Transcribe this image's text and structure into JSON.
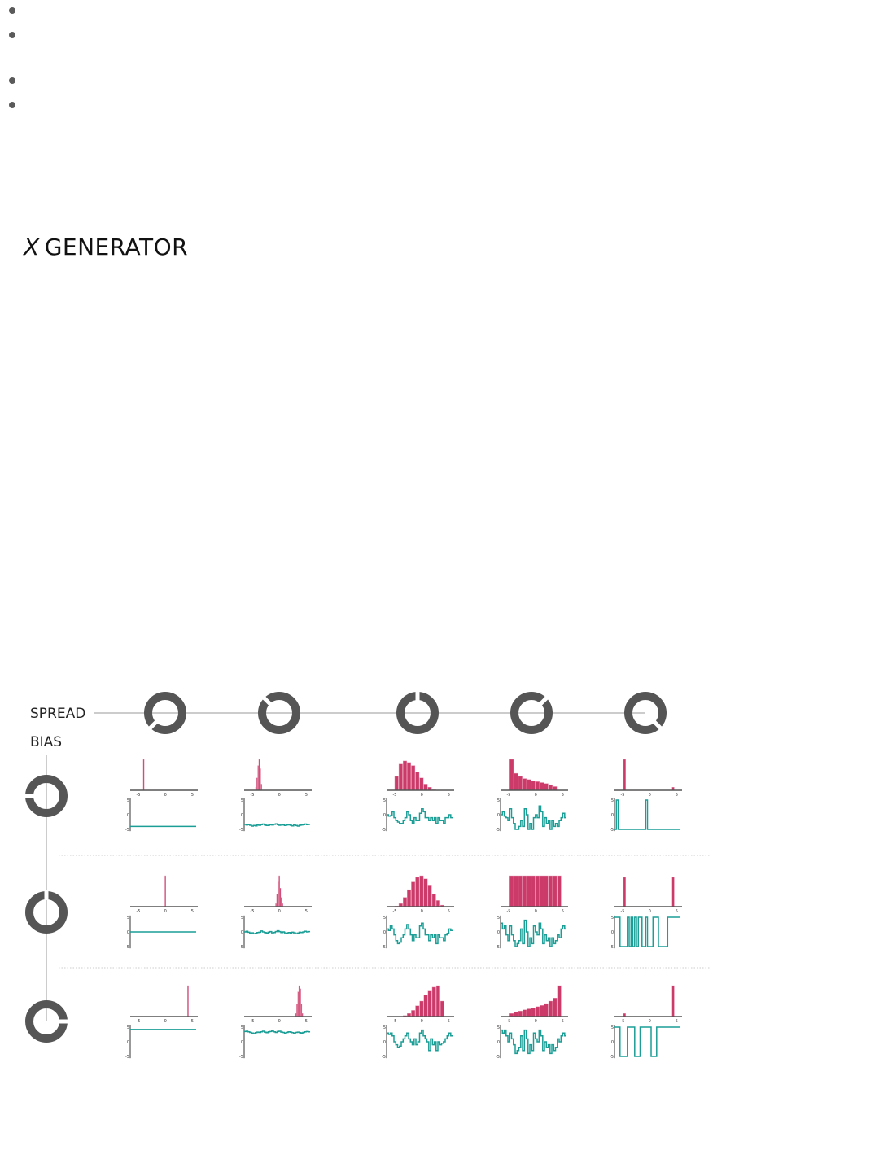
{
  "title": {
    "var": "X",
    "rest": "GENERATOR"
  },
  "bullets": 4,
  "labels": {
    "spread": "SPREAD",
    "bias": "BIAS"
  },
  "colors": {
    "knob": "#555555",
    "hist": "#cc3a6a",
    "trace": "#1a9e96",
    "line": "#bbbbbb"
  },
  "knobs": {
    "spread": [
      0,
      0.333,
      0.5,
      0.667,
      1
    ],
    "bias": [
      0.167,
      0.5,
      0.833
    ]
  },
  "axes": {
    "hist_ticks": [
      "-5",
      "0",
      "5"
    ],
    "trace_ticks": [
      "5",
      "0",
      "-5"
    ],
    "x_range": [
      -6.5,
      6
    ],
    "y_range": [
      -5,
      5
    ]
  },
  "grid": [
    [
      {
        "hist": {
          "start": -4.1,
          "width": 0.2,
          "counts": [
            1
          ]
        },
        "trace": [
          -4,
          -4,
          -4,
          -4,
          -4,
          -4,
          -4,
          -4,
          -4,
          -4,
          -4,
          -4,
          -4,
          -4,
          -4,
          -4,
          -4,
          -4,
          -4,
          -4,
          -4,
          -4,
          -4,
          -4,
          -4,
          -4,
          -4,
          -4,
          -4,
          -4,
          -4,
          -4,
          -4,
          -4,
          -4,
          -4
        ]
      },
      {
        "hist": {
          "start": -4.4,
          "width": 0.2,
          "counts": [
            0.1,
            0.4,
            0.8,
            1,
            0.7,
            0.2
          ]
        },
        "trace": [
          -3.3,
          -3.5,
          -3.4,
          -3.6,
          -3.9,
          -3.7,
          -3.8,
          -3.5,
          -3.6,
          -3.4,
          -3.2,
          -3.5,
          -3.7,
          -3.6,
          -3.4,
          -3.5,
          -3.3,
          -3.1,
          -3.4,
          -3.6,
          -3.3,
          -3.5,
          -3.7,
          -3.5,
          -3.4,
          -3.6,
          -3.8,
          -3.5,
          -3.7,
          -3.9,
          -3.6,
          -3.5,
          -3.4,
          -3.2,
          -3.4,
          -3.3
        ]
      },
      {
        "hist": {
          "start": -5,
          "width": 0.77,
          "counts": [
            0.45,
            0.85,
            0.95,
            0.9,
            0.8,
            0.6,
            0.4,
            0.2,
            0.1,
            0.02,
            0,
            0,
            0
          ]
        },
        "trace": [
          0,
          -0.5,
          -0.3,
          1,
          -1,
          -2,
          -2.5,
          -3,
          -3,
          -2,
          -1,
          1,
          0,
          -2,
          -3,
          -1,
          -2,
          -2,
          0.5,
          2,
          1,
          -1,
          -1,
          -2,
          -1,
          -2,
          -1,
          -3,
          -1,
          -2,
          -2,
          -3,
          -1,
          -1,
          0,
          -1
        ]
      },
      {
        "hist": {
          "start": -4.8,
          "width": 0.8,
          "counts": [
            1,
            0.55,
            0.45,
            0.38,
            0.35,
            0.3,
            0.28,
            0.25,
            0.22,
            0.18,
            0.12,
            0
          ]
        },
        "trace": [
          0,
          1,
          -0.5,
          -1,
          -2,
          2,
          -1,
          -3,
          -5,
          -5,
          -4,
          -2,
          -4,
          2,
          0,
          -5,
          -3,
          -5,
          -1,
          0,
          -1,
          3,
          1,
          -4,
          -1,
          -3,
          -2,
          -5,
          -2,
          -4,
          -3,
          -4,
          -2,
          -1,
          0.5,
          -1
        ]
      },
      {
        "hist": {
          "start": -4.85,
          "width": 0.5,
          "counts": [
            1,
            0,
            0,
            0,
            0,
            0,
            0,
            0,
            0,
            0,
            0,
            0,
            0,
            0,
            0,
            0,
            0,
            0,
            0.1
          ]
        },
        "trace": [
          -5,
          5,
          -5,
          -5,
          -5,
          -5,
          -5,
          -5,
          -5,
          -5,
          -5,
          -5,
          -5,
          -5,
          -5,
          -5,
          -5,
          5,
          -5,
          -5,
          -5,
          -5,
          -5,
          -5,
          -5,
          -5,
          -5,
          -5,
          -5,
          -5,
          -5,
          -5,
          -5,
          -5,
          -5,
          -5
        ]
      }
    ],
    [
      {
        "hist": {
          "start": -0.1,
          "width": 0.2,
          "counts": [
            1
          ]
        },
        "trace": [
          0,
          0,
          0,
          0,
          0,
          0,
          0,
          0,
          0,
          0,
          0,
          0,
          0,
          0,
          0,
          0,
          0,
          0,
          0,
          0,
          0,
          0,
          0,
          0,
          0,
          0,
          0,
          0,
          0,
          0,
          0,
          0,
          0,
          0,
          0,
          0
        ]
      },
      {
        "hist": {
          "start": -0.7,
          "width": 0.2,
          "counts": [
            0.1,
            0.4,
            0.8,
            1,
            0.6,
            0.3,
            0.1
          ]
        },
        "trace": [
          0,
          0.2,
          -0.1,
          -0.4,
          -0.3,
          -0.6,
          -0.5,
          -0.2,
          -0.1,
          0.3,
          0,
          -0.2,
          -0.4,
          -0.1,
          0.1,
          -0.3,
          -0.2,
          0.1,
          0.4,
          0.1,
          -0.2,
          0,
          -0.3,
          -0.5,
          -0.2,
          -0.4,
          -0.1,
          -0.3,
          -0.6,
          -0.4,
          -0.1,
          -0.2,
          0,
          0.2,
          0,
          0.1
        ]
      },
      {
        "hist": {
          "start": -5,
          "width": 0.77,
          "counts": [
            0.02,
            0.1,
            0.3,
            0.55,
            0.8,
            0.95,
            1,
            0.9,
            0.7,
            0.4,
            0.2,
            0.05,
            0
          ]
        },
        "trace": [
          1,
          0.5,
          2,
          1,
          -1,
          -3,
          -4,
          -3.5,
          -2,
          -1,
          1,
          2.5,
          1,
          -1,
          -3,
          -1,
          -2,
          -2,
          2,
          3,
          1,
          -1,
          -1,
          -3,
          -1,
          -2,
          -1,
          -4,
          -1,
          -2,
          -2,
          -3,
          -1,
          -0.5,
          1,
          0.5
        ]
      },
      {
        "hist": {
          "start": -4.8,
          "width": 0.8,
          "counts": [
            1,
            1,
            1,
            1,
            1,
            1,
            1,
            1,
            1,
            1,
            1,
            1
          ]
        },
        "trace": [
          3,
          1,
          2,
          -1,
          -3,
          2,
          -1,
          -3,
          -5,
          -4,
          -3,
          1,
          -4,
          4,
          0,
          -5,
          -2,
          -4,
          2,
          0,
          -1,
          3,
          1,
          -4,
          -1,
          -3,
          -2,
          -5,
          -2,
          -4,
          -3,
          -1,
          -2,
          1,
          2,
          1
        ]
      },
      {
        "hist": {
          "start": -4.85,
          "width": 0.5,
          "counts": [
            0.95,
            0,
            0,
            0,
            0,
            0,
            0,
            0,
            0,
            0,
            0,
            0,
            0,
            0,
            0,
            0,
            0,
            0,
            0.95
          ]
        },
        "trace": [
          5,
          5,
          5,
          -5,
          -5,
          -5,
          -5,
          5,
          -5,
          5,
          -5,
          5,
          -5,
          5,
          5,
          -5,
          -5,
          5,
          -5,
          -5,
          -5,
          5,
          5,
          5,
          -5,
          -5,
          -5,
          -5,
          -5,
          5,
          5,
          5,
          5,
          5,
          5,
          5
        ]
      }
    ],
    [
      {
        "hist": {
          "start": 4.1,
          "width": 0.2,
          "counts": [
            1
          ]
        },
        "trace": [
          4.2,
          4.2,
          4.2,
          4.2,
          4.2,
          4.2,
          4.2,
          4.2,
          4.2,
          4.2,
          4.2,
          4.2,
          4.2,
          4.2,
          4.2,
          4.2,
          4.2,
          4.2,
          4.2,
          4.2,
          4.2,
          4.2,
          4.2,
          4.2,
          4.2,
          4.2,
          4.2,
          4.2,
          4.2,
          4.2,
          4.2,
          4.2,
          4.2,
          4.2,
          4.2,
          4.2
        ]
      },
      {
        "hist": {
          "start": 3.0,
          "width": 0.2,
          "counts": [
            0.1,
            0.4,
            0.8,
            1,
            0.9,
            0.4,
            0.1
          ]
        },
        "trace": [
          3.5,
          3.6,
          3.4,
          3.2,
          3.0,
          2.8,
          3.1,
          3.3,
          3.2,
          3.4,
          3.6,
          3.3,
          3.1,
          3.4,
          3.5,
          3.7,
          3.4,
          3.2,
          3.5,
          3.6,
          3.3,
          3.2,
          3.0,
          3.2,
          3.4,
          3.3,
          3.1,
          2.9,
          3.2,
          3.3,
          3.1,
          3.0,
          3.2,
          3.4,
          3.5,
          3.4
        ]
      },
      {
        "hist": {
          "start": -5,
          "width": 0.77,
          "counts": [
            0,
            0,
            0.03,
            0.1,
            0.2,
            0.35,
            0.5,
            0.7,
            0.85,
            0.95,
            1,
            0.5,
            0
          ]
        },
        "trace": [
          3,
          2.5,
          3,
          2,
          0,
          -1,
          -2,
          -1.5,
          0,
          1,
          2,
          3,
          1,
          0,
          -1,
          1,
          -1,
          0,
          3,
          4,
          2,
          1,
          0,
          -3,
          1,
          -1,
          0,
          -3,
          0,
          -1,
          -0.5,
          0,
          1,
          2,
          3,
          2
        ]
      },
      {
        "hist": {
          "start": -4.8,
          "width": 0.8,
          "counts": [
            0.1,
            0.15,
            0.18,
            0.22,
            0.25,
            0.28,
            0.32,
            0.36,
            0.42,
            0.5,
            0.6,
            1
          ]
        },
        "trace": [
          4,
          3,
          4,
          2,
          0,
          3,
          1,
          -1,
          -4,
          -3,
          -2,
          2,
          -3,
          4,
          1,
          -4,
          -1,
          -3,
          3,
          1,
          0,
          4,
          2,
          -3,
          0,
          -2,
          -1,
          -4,
          -1,
          -3,
          -2,
          1,
          0,
          2,
          3,
          2
        ]
      },
      {
        "hist": {
          "start": -4.85,
          "width": 0.5,
          "counts": [
            0.1,
            0,
            0,
            0,
            0,
            0,
            0,
            0,
            0,
            0,
            0,
            0,
            0,
            0,
            0,
            0,
            0,
            0,
            1
          ]
        },
        "trace": [
          5,
          5,
          5,
          -5,
          -5,
          -5,
          -5,
          5,
          5,
          5,
          5,
          -5,
          -5,
          -5,
          5,
          5,
          5,
          5,
          5,
          5,
          -5,
          -5,
          -5,
          5,
          5,
          5,
          5,
          5,
          5,
          5,
          5,
          5,
          5,
          5,
          5,
          5
        ]
      }
    ]
  ]
}
